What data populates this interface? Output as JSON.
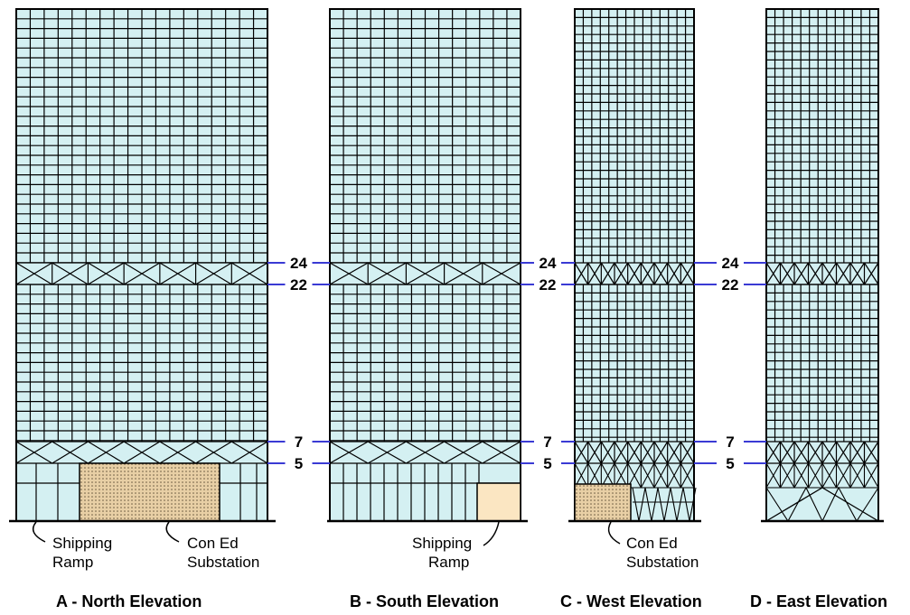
{
  "colors": {
    "facade": "#d4f0f2",
    "grid": "#000000",
    "floor_marker": "#3a3ad4",
    "substation_fill": "#e8cfa5",
    "ramp_fill": "#fbe6c2",
    "base_fill": "#d4f0f2"
  },
  "floor_markers": [
    "24",
    "22",
    "7",
    "5"
  ],
  "elevations": [
    {
      "title": "A - North Elevation",
      "annotations": [
        {
          "text_lines": [
            "Shipping",
            "Ramp"
          ]
        },
        {
          "text_lines": [
            "Con Ed",
            "Substation"
          ]
        }
      ]
    },
    {
      "title": "B - South Elevation",
      "annotations": [
        {
          "text_lines": [
            "Shipping",
            "Ramp"
          ]
        }
      ]
    },
    {
      "title": "C - West Elevation",
      "annotations": [
        {
          "text_lines": [
            "Con Ed",
            "Substation"
          ]
        }
      ]
    },
    {
      "title": "D - East Elevation",
      "annotations": []
    }
  ]
}
